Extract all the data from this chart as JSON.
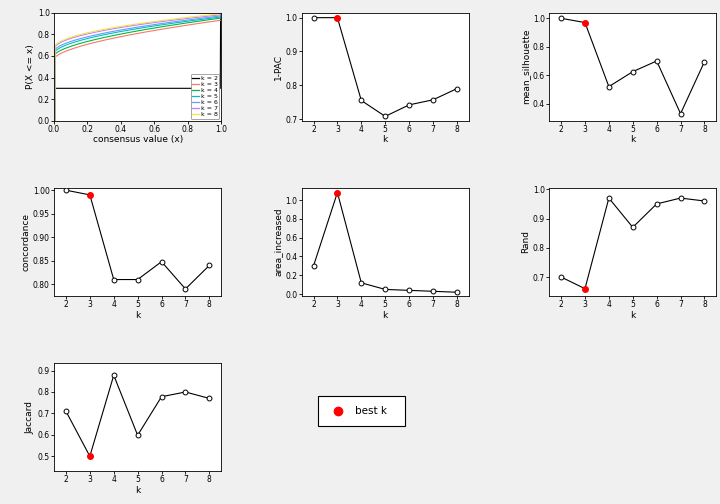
{
  "k_values": [
    2,
    3,
    4,
    5,
    6,
    7,
    8
  ],
  "best_k": 3,
  "pac_1minus": [
    1.0,
    1.0,
    0.755,
    0.708,
    0.742,
    0.757,
    0.79
  ],
  "mean_silhouette": [
    1.0,
    0.97,
    0.52,
    0.625,
    0.7,
    0.33,
    0.695
  ],
  "concordance": [
    1.0,
    0.99,
    0.81,
    0.81,
    0.848,
    0.79,
    0.84
  ],
  "area_increased": [
    0.3,
    1.08,
    0.12,
    0.05,
    0.04,
    0.03,
    0.02
  ],
  "rand": [
    0.7,
    0.66,
    0.97,
    0.87,
    0.95,
    0.97,
    0.96
  ],
  "jaccard": [
    0.71,
    0.5,
    0.878,
    0.598,
    0.778,
    0.8,
    0.77
  ],
  "rand_best_k": 3,
  "ecdf_line_colors": [
    "#000000",
    "#f8766d",
    "#00ba38",
    "#00bfc4",
    "#619cff",
    "#c77cff",
    "#f0e442"
  ],
  "legend_labels": [
    "k = 2",
    "k = 3",
    "k = 4",
    "k = 5",
    "k = 6",
    "k = 7",
    "k = 8"
  ],
  "figure_bg": "#f0f0f0",
  "panel_bg": "#ffffff"
}
